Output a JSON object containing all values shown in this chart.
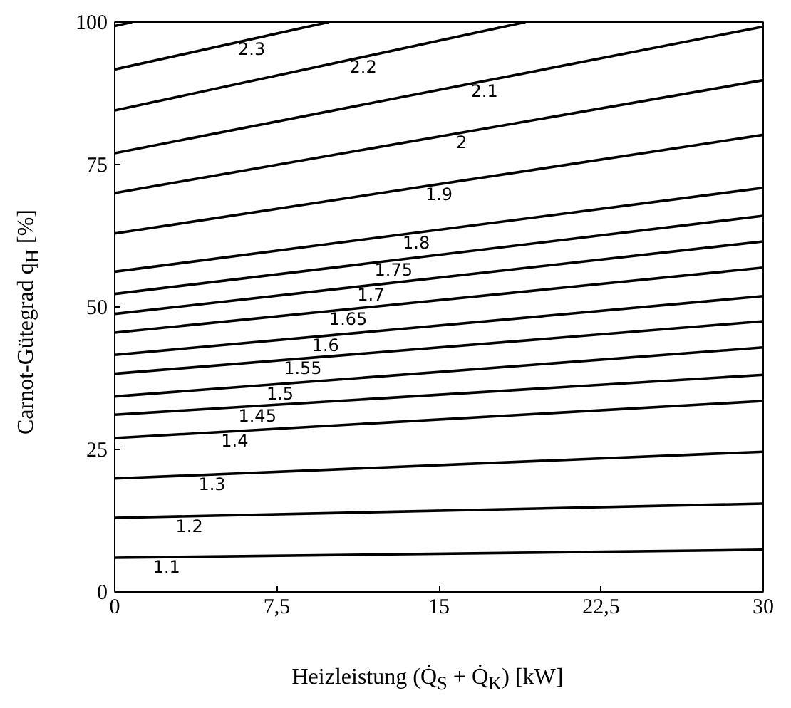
{
  "chart_data": {
    "type": "line",
    "xlabel": "Heizleistung (Q̇$_{S}$ + Q̇$_{K}$) [kW]",
    "ylabel": "Carnot-Gütegrad q$_{H}$ [%]",
    "xlim": [
      0,
      30
    ],
    "ylim": [
      0,
      100
    ],
    "xticks": [
      0,
      {
        "value": 7.5,
        "label": "7,5"
      },
      15,
      {
        "value": 22.5,
        "label": "22,5"
      },
      30
    ],
    "yticks": [
      0,
      25,
      50,
      75,
      100
    ],
    "grid": false,
    "marker": "none",
    "line_style": "solid",
    "series": [
      {
        "name": "1.1",
        "color": "#000000",
        "x": [
          0,
          30
        ],
        "values": [
          6.0,
          7.4
        ]
      },
      {
        "name": "1.2",
        "color": "#000000",
        "x": [
          0,
          30
        ],
        "values": [
          13.0,
          15.5
        ]
      },
      {
        "name": "1.3",
        "color": "#000000",
        "x": [
          0,
          30
        ],
        "values": [
          19.9,
          24.6
        ]
      },
      {
        "name": "1.4",
        "color": "#000000",
        "x": [
          0,
          30
        ],
        "values": [
          27.0,
          33.5
        ]
      },
      {
        "name": "1.45",
        "color": "#000000",
        "x": [
          0,
          30
        ],
        "values": [
          31.1,
          38.1
        ]
      },
      {
        "name": "1.5",
        "color": "#000000",
        "x": [
          0,
          30
        ],
        "values": [
          34.3,
          42.9
        ]
      },
      {
        "name": "1.55",
        "color": "#000000",
        "x": [
          0,
          30
        ],
        "values": [
          38.3,
          47.5
        ]
      },
      {
        "name": "1.6",
        "color": "#000000",
        "x": [
          0,
          30
        ],
        "values": [
          41.6,
          51.9
        ]
      },
      {
        "name": "1.65",
        "color": "#000000",
        "x": [
          0,
          30
        ],
        "values": [
          45.5,
          56.9
        ]
      },
      {
        "name": "1.7",
        "color": "#000000",
        "x": [
          0,
          30
        ],
        "values": [
          48.8,
          61.5
        ]
      },
      {
        "name": "1.75",
        "color": "#000000",
        "x": [
          0,
          30
        ],
        "values": [
          52.3,
          66.0
        ]
      },
      {
        "name": "1.8",
        "color": "#000000",
        "x": [
          0,
          30
        ],
        "values": [
          56.2,
          70.9
        ]
      },
      {
        "name": "1.9",
        "color": "#000000",
        "x": [
          0,
          30
        ],
        "values": [
          62.9,
          80.2
        ]
      },
      {
        "name": "2",
        "color": "#000000",
        "x": [
          0,
          30
        ],
        "values": [
          70.0,
          89.8
        ]
      },
      {
        "name": "2.1",
        "color": "#000000",
        "x": [
          0,
          30
        ],
        "values": [
          77.0,
          99.2
        ]
      },
      {
        "name": "2.2",
        "color": "#000000",
        "x": [
          0,
          19.0
        ],
        "values": [
          84.5,
          100
        ]
      },
      {
        "name": "2.3",
        "color": "#000000",
        "x": [
          0,
          9.9
        ],
        "values": [
          91.7,
          100
        ]
      },
      {
        "color": "#000000",
        "x": [
          0,
          0.8
        ],
        "values": [
          99.3,
          100
        ]
      }
    ]
  }
}
